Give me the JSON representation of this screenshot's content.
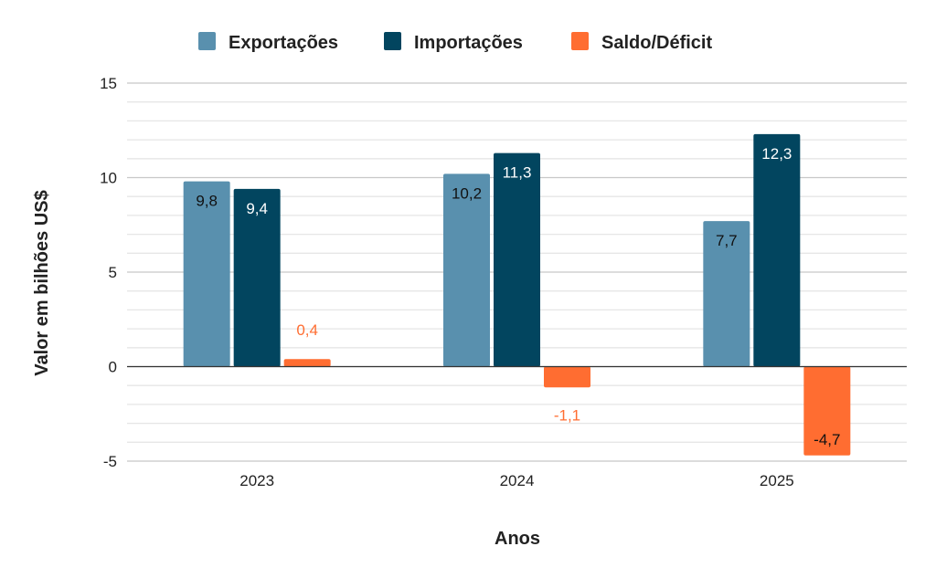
{
  "chart_data": {
    "type": "bar",
    "categories": [
      "2023",
      "2024",
      "2025"
    ],
    "series": [
      {
        "name": "Exportações",
        "color": "#5990ae",
        "label_color": "#111111",
        "values": [
          9.8,
          10.2,
          7.7
        ],
        "labels": [
          "9,8",
          "10,2",
          "7,7"
        ]
      },
      {
        "name": "Importações",
        "color": "#02455f",
        "label_color": "#ffffff",
        "values": [
          9.4,
          11.3,
          12.3
        ],
        "labels": [
          "9,4",
          "11,3",
          "12,3"
        ]
      },
      {
        "name": "Saldo/Déficit",
        "color": "#ff6d31",
        "label_color": "#ff6d31",
        "values": [
          0.4,
          -1.1,
          -4.7
        ],
        "labels": [
          "0,4",
          "-1,1",
          "-4,7"
        ]
      }
    ],
    "xlabel": "Anos",
    "ylabel": "Valor em bilhões US$",
    "ylim": [
      -5,
      15
    ],
    "yticks": [
      -5,
      0,
      5,
      10,
      15
    ],
    "ytick_labels": [
      "-5",
      "0",
      "5",
      "10",
      "15"
    ],
    "minor_grid_step": 1,
    "grid": true,
    "legend": "top-center"
  }
}
